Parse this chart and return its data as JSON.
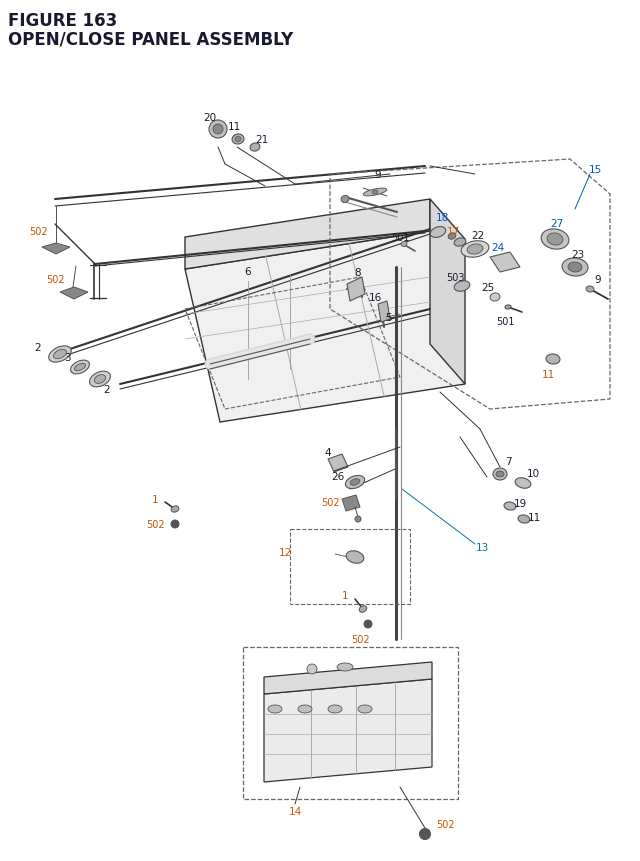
{
  "title_line1": "FIGURE 163",
  "title_line2": "OPEN/CLOSE PANEL ASSEMBLY",
  "bg_color": "#ffffff",
  "lc": "#333333",
  "pc": "#555555",
  "tc": "#1a1a2e",
  "oc": "#cc5500",
  "bc": "#0055cc",
  "cc": "#007799",
  "dc": "#666666"
}
